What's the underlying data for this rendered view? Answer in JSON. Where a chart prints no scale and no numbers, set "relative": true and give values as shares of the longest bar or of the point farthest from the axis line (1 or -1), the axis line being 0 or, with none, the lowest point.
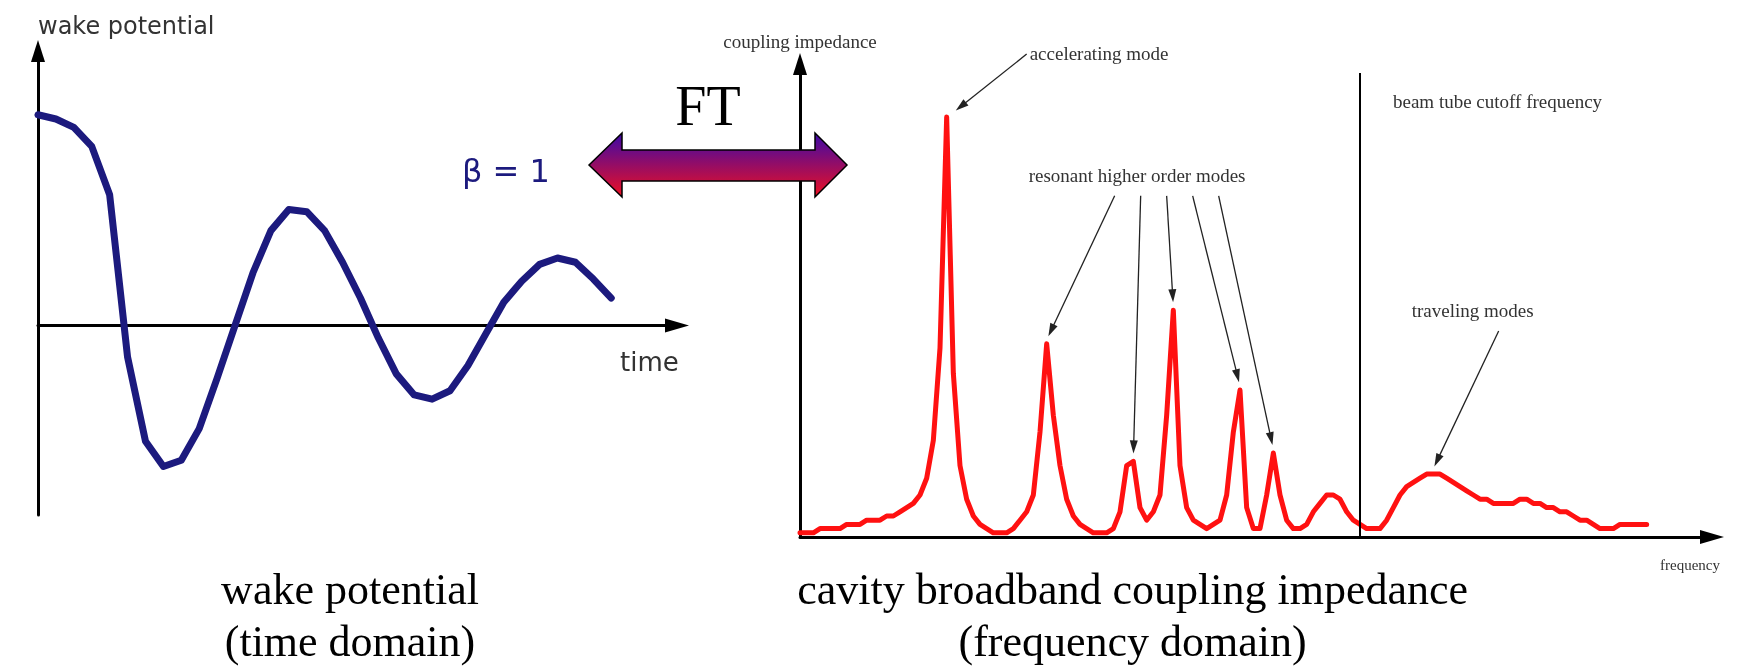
{
  "chart_data": [
    {
      "type": "line",
      "relative": true,
      "title": "wake potential",
      "subtitle": "(time domain)",
      "ylabel": "wake potential",
      "xlabel": "time",
      "marker": "none",
      "annotations": [
        "FT"
      ],
      "categories": [
        null,
        null,
        null,
        null,
        null,
        null,
        null,
        null,
        null,
        null,
        null,
        null,
        null,
        null,
        null,
        null,
        null,
        null,
        null,
        null,
        null,
        null,
        null,
        null,
        null,
        null,
        null,
        null,
        null,
        null,
        null,
        null,
        null,
        null,
        null,
        null
      ],
      "series": [
        {
          "name": "β = 1",
          "color": "#1c1a7e",
          "values": [
            1.0,
            0.98,
            0.94,
            0.85,
            0.62,
            -0.15,
            -0.55,
            -0.67,
            -0.64,
            -0.49,
            -0.25,
            0.0,
            0.25,
            0.45,
            0.55,
            0.54,
            0.45,
            0.3,
            0.13,
            -0.06,
            -0.23,
            -0.33,
            -0.35,
            -0.31,
            -0.19,
            -0.04,
            0.11,
            0.21,
            0.29,
            0.32,
            0.3,
            0.22,
            0.13,
            null,
            null,
            null
          ]
        }
      ]
    },
    {
      "type": "line",
      "relative": true,
      "title": "cavity broadband coupling impedance",
      "subtitle": "(frequency domain)",
      "ylabel": "coupling impedance",
      "xlabel": "frequency",
      "marker": "none",
      "categories": [
        null,
        null,
        null,
        null,
        null,
        null,
        null,
        null,
        null,
        null,
        null,
        null,
        null,
        null,
        null,
        null,
        null,
        null,
        null,
        null,
        null,
        null,
        null,
        null,
        null,
        null,
        null,
        null,
        null,
        null,
        null,
        null,
        null,
        null,
        null,
        null,
        null,
        null,
        null,
        null,
        null,
        null,
        null,
        null,
        null,
        null,
        null,
        null,
        null,
        null,
        null,
        null,
        null,
        null,
        null,
        null,
        null,
        null,
        null,
        null,
        null,
        null,
        null,
        null,
        null,
        null,
        null,
        null,
        null,
        null,
        null,
        null,
        null,
        null,
        null,
        null,
        null,
        null,
        null,
        null,
        null,
        null,
        null,
        null,
        null,
        null,
        null,
        null,
        null,
        null,
        null,
        null,
        null,
        null,
        null,
        null,
        null,
        null,
        null,
        null,
        null,
        null,
        null,
        null,
        null,
        null,
        null,
        null,
        null,
        null,
        null,
        null,
        null,
        null,
        null,
        null,
        null,
        null,
        null,
        null,
        null,
        null,
        null,
        null,
        null,
        null,
        null,
        null,
        null,
        null,
        null,
        null,
        null,
        null,
        null,
        null
      ],
      "series": [
        {
          "color": "#ff1111",
          "values": [
            0.01,
            0.01,
            0.01,
            0.02,
            0.02,
            0.02,
            0.02,
            0.03,
            0.03,
            0.03,
            0.04,
            0.04,
            0.04,
            0.05,
            0.05,
            0.06,
            0.07,
            0.08,
            0.1,
            0.14,
            0.23,
            0.45,
            1.0,
            0.39,
            0.17,
            0.09,
            0.05,
            0.03,
            0.02,
            0.01,
            0.01,
            0.01,
            0.02,
            0.04,
            0.06,
            0.1,
            0.25,
            0.46,
            0.29,
            0.17,
            0.09,
            0.05,
            0.03,
            0.02,
            0.01,
            0.01,
            0.01,
            0.02,
            0.06,
            0.17,
            0.18,
            0.07,
            0.04,
            0.06,
            0.1,
            0.29,
            0.54,
            0.17,
            0.07,
            0.04,
            0.03,
            0.02,
            0.03,
            0.04,
            0.1,
            0.25,
            0.35,
            0.07,
            0.02,
            0.02,
            0.1,
            0.2,
            0.1,
            0.04,
            0.02,
            0.02,
            0.03,
            0.06,
            0.08,
            0.1,
            0.1,
            0.09,
            0.06,
            0.04,
            0.03,
            0.02,
            0.02,
            0.02,
            0.04,
            0.07,
            0.1,
            0.12,
            0.13,
            0.14,
            0.15,
            0.15,
            0.15,
            0.14,
            0.13,
            0.12,
            0.11,
            0.1,
            0.09,
            0.09,
            0.08,
            0.08,
            0.08,
            0.08,
            0.09,
            0.09,
            0.08,
            0.08,
            0.07,
            0.07,
            0.06,
            0.06,
            0.05,
            0.04,
            0.04,
            0.03,
            0.02,
            0.02,
            0.02,
            0.03,
            0.03,
            0.03,
            0.03,
            0.03,
            null,
            null,
            null,
            null,
            null,
            null,
            null,
            null
          ]
        }
      ],
      "annotations": [
        "accelerating mode",
        "beam tube cutoff frequency",
        "resonant higher order modes",
        "traveling modes"
      ]
    }
  ]
}
